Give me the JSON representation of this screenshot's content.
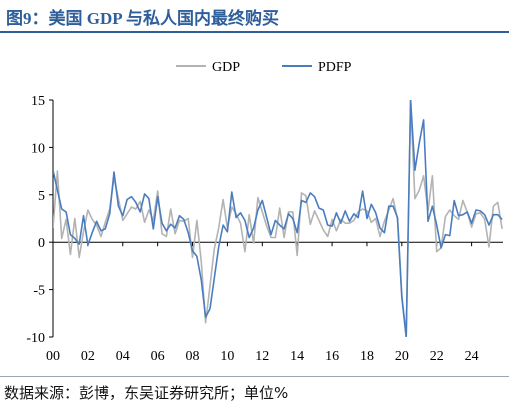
{
  "header": {
    "title": "图9：美国 GDP 与私人国内最终购买"
  },
  "footer": {
    "source": "数据来源：彭博，东吴证券研究所；单位%"
  },
  "chart_data": {
    "type": "line",
    "title": "图9：美国 GDP 与私人国内最终购买",
    "xlabel": "",
    "ylabel": "",
    "unit": "%",
    "xlim": [
      2000,
      2025.8
    ],
    "ylim": [
      -10,
      15
    ],
    "yticks": [
      -10,
      -5,
      0,
      5,
      10,
      15
    ],
    "xtick_values": [
      2000,
      2002,
      2004,
      2006,
      2008,
      2010,
      2012,
      2014,
      2016,
      2018,
      2020,
      2022,
      2024
    ],
    "xtick_labels": [
      "00",
      "02",
      "04",
      "06",
      "08",
      "10",
      "12",
      "14",
      "16",
      "18",
      "20",
      "22",
      "24"
    ],
    "grid": false,
    "legend_position": "top-center",
    "series": [
      {
        "name": "GDP",
        "color": "#b3b3b3",
        "points": [
          [
            2000.0,
            1.5
          ],
          [
            2000.25,
            7.5
          ],
          [
            2000.5,
            0.4
          ],
          [
            2000.75,
            2.4
          ],
          [
            2001.0,
            -1.3
          ],
          [
            2001.25,
            2.5
          ],
          [
            2001.5,
            -1.6
          ],
          [
            2001.75,
            1.1
          ],
          [
            2002.0,
            3.4
          ],
          [
            2002.25,
            2.4
          ],
          [
            2002.5,
            1.8
          ],
          [
            2002.75,
            0.6
          ],
          [
            2003.0,
            2.1
          ],
          [
            2003.25,
            3.5
          ],
          [
            2003.5,
            6.8
          ],
          [
            2003.75,
            4.6
          ],
          [
            2004.0,
            2.3
          ],
          [
            2004.25,
            3.0
          ],
          [
            2004.5,
            3.7
          ],
          [
            2004.75,
            3.5
          ],
          [
            2005.0,
            4.3
          ],
          [
            2005.25,
            2.1
          ],
          [
            2005.5,
            3.4
          ],
          [
            2005.75,
            2.3
          ],
          [
            2006.0,
            5.4
          ],
          [
            2006.25,
            0.9
          ],
          [
            2006.5,
            0.6
          ],
          [
            2006.75,
            3.5
          ],
          [
            2007.0,
            0.9
          ],
          [
            2007.25,
            2.3
          ],
          [
            2007.5,
            2.2
          ],
          [
            2007.75,
            2.5
          ],
          [
            2008.0,
            -1.6
          ],
          [
            2008.25,
            2.3
          ],
          [
            2008.5,
            -2.1
          ],
          [
            2008.75,
            -8.5
          ],
          [
            2009.0,
            -4.6
          ],
          [
            2009.25,
            -0.7
          ],
          [
            2009.5,
            1.5
          ],
          [
            2009.75,
            4.5
          ],
          [
            2010.0,
            1.5
          ],
          [
            2010.25,
            3.7
          ],
          [
            2010.5,
            3.0
          ],
          [
            2010.75,
            2.0
          ],
          [
            2011.0,
            -1.0
          ],
          [
            2011.25,
            2.9
          ],
          [
            2011.5,
            -0.1
          ],
          [
            2011.75,
            4.7
          ],
          [
            2012.0,
            3.2
          ],
          [
            2012.25,
            1.7
          ],
          [
            2012.5,
            0.5
          ],
          [
            2012.75,
            0.5
          ],
          [
            2013.0,
            3.6
          ],
          [
            2013.25,
            0.5
          ],
          [
            2013.5,
            3.2
          ],
          [
            2013.75,
            3.2
          ],
          [
            2014.0,
            -1.4
          ],
          [
            2014.25,
            5.2
          ],
          [
            2014.5,
            4.9
          ],
          [
            2014.75,
            1.9
          ],
          [
            2015.0,
            3.3
          ],
          [
            2015.25,
            2.3
          ],
          [
            2015.5,
            1.3
          ],
          [
            2015.75,
            0.6
          ],
          [
            2016.0,
            2.4
          ],
          [
            2016.25,
            1.2
          ],
          [
            2016.5,
            2.4
          ],
          [
            2016.75,
            2.0
          ],
          [
            2017.0,
            2.0
          ],
          [
            2017.25,
            2.3
          ],
          [
            2017.5,
            3.2
          ],
          [
            2017.75,
            3.5
          ],
          [
            2018.0,
            3.3
          ],
          [
            2018.25,
            2.1
          ],
          [
            2018.5,
            2.5
          ],
          [
            2018.75,
            0.6
          ],
          [
            2019.0,
            2.2
          ],
          [
            2019.25,
            3.4
          ],
          [
            2019.5,
            4.6
          ],
          [
            2019.75,
            2.4
          ],
          [
            2020.0,
            -5.5
          ],
          [
            2020.25,
            -10
          ],
          [
            2020.5,
            15
          ],
          [
            2020.75,
            4.6
          ],
          [
            2021.0,
            5.5
          ],
          [
            2021.25,
            7.0
          ],
          [
            2021.5,
            3.3
          ],
          [
            2021.75,
            7.0
          ],
          [
            2022.0,
            -1.0
          ],
          [
            2022.25,
            -0.6
          ],
          [
            2022.5,
            2.7
          ],
          [
            2022.75,
            3.4
          ],
          [
            2023.0,
            2.8
          ],
          [
            2023.25,
            2.4
          ],
          [
            2023.5,
            4.4
          ],
          [
            2023.75,
            3.2
          ],
          [
            2024.0,
            1.6
          ],
          [
            2024.25,
            3.0
          ],
          [
            2024.5,
            3.1
          ],
          [
            2024.75,
            2.4
          ],
          [
            2025.0,
            -0.5
          ],
          [
            2025.25,
            3.8
          ],
          [
            2025.5,
            4.2
          ],
          [
            2025.75,
            1.4
          ]
        ]
      },
      {
        "name": "PDFP",
        "color": "#4a7dbf",
        "points": [
          [
            2000.0,
            7.6
          ],
          [
            2000.25,
            5.5
          ],
          [
            2000.5,
            3.5
          ],
          [
            2000.75,
            3.2
          ],
          [
            2001.0,
            0.8
          ],
          [
            2001.25,
            0.4
          ],
          [
            2001.5,
            -0.2
          ],
          [
            2001.75,
            2.8
          ],
          [
            2002.0,
            -0.3
          ],
          [
            2002.25,
            1.0
          ],
          [
            2002.5,
            2.2
          ],
          [
            2002.75,
            1.2
          ],
          [
            2003.0,
            1.4
          ],
          [
            2003.25,
            3.0
          ],
          [
            2003.5,
            7.4
          ],
          [
            2003.75,
            3.8
          ],
          [
            2004.0,
            2.8
          ],
          [
            2004.25,
            4.5
          ],
          [
            2004.5,
            4.8
          ],
          [
            2004.75,
            4.2
          ],
          [
            2005.0,
            3.2
          ],
          [
            2005.25,
            5.1
          ],
          [
            2005.5,
            4.6
          ],
          [
            2005.75,
            1.4
          ],
          [
            2006.0,
            4.8
          ],
          [
            2006.25,
            2.0
          ],
          [
            2006.5,
            1.2
          ],
          [
            2006.75,
            1.9
          ],
          [
            2007.0,
            1.5
          ],
          [
            2007.25,
            2.8
          ],
          [
            2007.5,
            2.4
          ],
          [
            2007.75,
            1.0
          ],
          [
            2008.0,
            -0.9
          ],
          [
            2008.25,
            -1.5
          ],
          [
            2008.5,
            -4.0
          ],
          [
            2008.75,
            -7.9
          ],
          [
            2009.0,
            -7.0
          ],
          [
            2009.25,
            -3.8
          ],
          [
            2009.5,
            -0.5
          ],
          [
            2009.75,
            1.8
          ],
          [
            2010.0,
            1.1
          ],
          [
            2010.25,
            5.3
          ],
          [
            2010.5,
            2.6
          ],
          [
            2010.75,
            3.1
          ],
          [
            2011.0,
            2.3
          ],
          [
            2011.25,
            0.5
          ],
          [
            2011.5,
            1.5
          ],
          [
            2011.75,
            3.4
          ],
          [
            2012.0,
            4.4
          ],
          [
            2012.25,
            2.6
          ],
          [
            2012.5,
            0.8
          ],
          [
            2012.75,
            2.3
          ],
          [
            2013.0,
            1.8
          ],
          [
            2013.25,
            1.4
          ],
          [
            2013.5,
            3.0
          ],
          [
            2013.75,
            2.5
          ],
          [
            2014.0,
            1.0
          ],
          [
            2014.25,
            4.4
          ],
          [
            2014.5,
            4.2
          ],
          [
            2014.75,
            5.2
          ],
          [
            2015.0,
            4.8
          ],
          [
            2015.25,
            3.6
          ],
          [
            2015.5,
            3.4
          ],
          [
            2015.75,
            1.8
          ],
          [
            2016.0,
            1.7
          ],
          [
            2016.25,
            3.1
          ],
          [
            2016.5,
            2.0
          ],
          [
            2016.75,
            3.3
          ],
          [
            2017.0,
            2.2
          ],
          [
            2017.25,
            3.0
          ],
          [
            2017.5,
            2.6
          ],
          [
            2017.75,
            5.4
          ],
          [
            2018.0,
            2.5
          ],
          [
            2018.25,
            4.0
          ],
          [
            2018.5,
            3.1
          ],
          [
            2018.75,
            1.5
          ],
          [
            2019.0,
            1.0
          ],
          [
            2019.25,
            3.8
          ],
          [
            2019.5,
            3.8
          ],
          [
            2019.75,
            2.6
          ],
          [
            2020.0,
            -5.8
          ],
          [
            2020.25,
            -10
          ],
          [
            2020.5,
            15
          ],
          [
            2020.75,
            7.6
          ],
          [
            2021.0,
            10.5
          ],
          [
            2021.25,
            12.9
          ],
          [
            2021.5,
            2.2
          ],
          [
            2021.75,
            3.8
          ],
          [
            2022.0,
            1.8
          ],
          [
            2022.25,
            -0.6
          ],
          [
            2022.5,
            0.8
          ],
          [
            2022.75,
            0.7
          ],
          [
            2023.0,
            4.4
          ],
          [
            2023.25,
            2.8
          ],
          [
            2023.5,
            2.9
          ],
          [
            2023.75,
            3.2
          ],
          [
            2024.0,
            2.0
          ],
          [
            2024.25,
            3.4
          ],
          [
            2024.5,
            3.3
          ],
          [
            2024.75,
            2.9
          ],
          [
            2025.0,
            1.8
          ],
          [
            2025.25,
            2.9
          ],
          [
            2025.5,
            2.9
          ],
          [
            2025.75,
            2.4
          ]
        ]
      }
    ]
  }
}
